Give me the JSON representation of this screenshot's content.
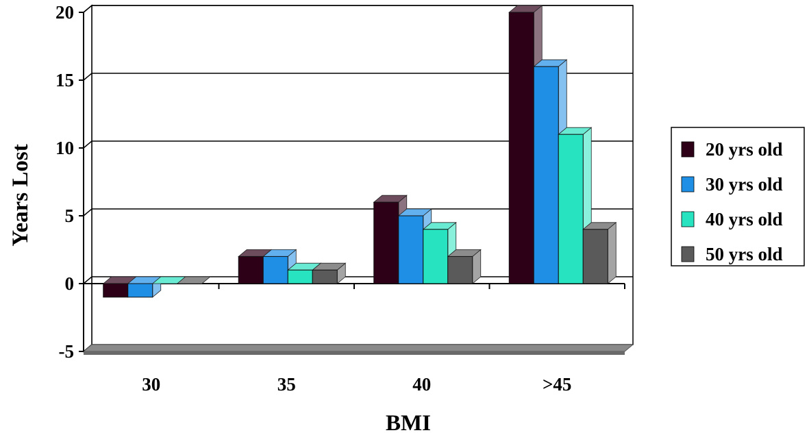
{
  "chart_data": {
    "type": "bar",
    "title": "",
    "xlabel": "BMI",
    "ylabel": "Years Lost",
    "ylim": [
      -5,
      20
    ],
    "yticks": [
      -5,
      0,
      5,
      10,
      15,
      20
    ],
    "categories": [
      "30",
      "35",
      "40",
      ">45"
    ],
    "series": [
      {
        "name": "20 yrs old",
        "values": [
          -1,
          2,
          6,
          20
        ]
      },
      {
        "name": "30 yrs old",
        "values": [
          -1,
          2,
          5,
          16
        ]
      },
      {
        "name": "40 yrs old",
        "values": [
          0,
          1,
          4,
          11
        ]
      },
      {
        "name": "50 yrs old",
        "values": [
          0,
          1,
          2,
          4
        ]
      }
    ],
    "colors": [
      "#2e0018",
      "#1f8fe6",
      "#28e3c0",
      "#5a5a5a"
    ],
    "grid": true,
    "style": "3d",
    "legend_position": "right"
  }
}
